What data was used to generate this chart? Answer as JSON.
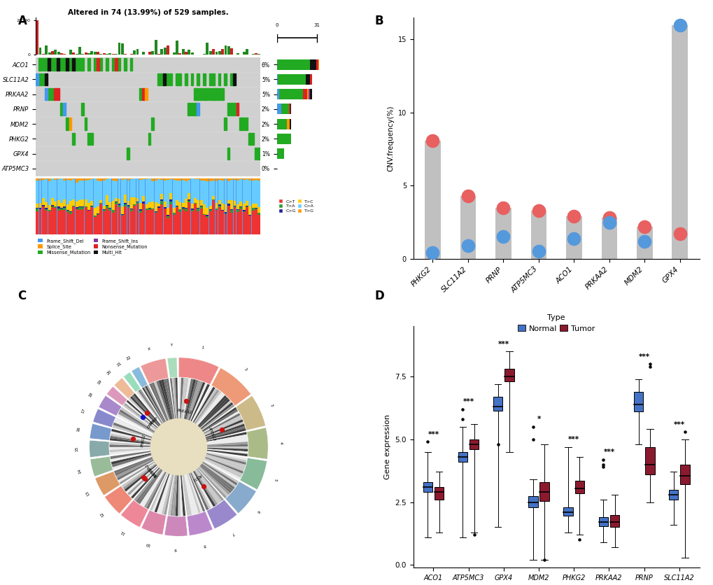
{
  "title_A": "Altered in 74 (13.99%) of 529 samples.",
  "genes": [
    "ACO1",
    "SLC11A2",
    "PRKAA2",
    "PRNP",
    "MDM2",
    "PHKG2",
    "GPX4",
    "ATP5MC3"
  ],
  "freq_labels": [
    "6%",
    "5%",
    "5%",
    "2%",
    "2%",
    "2%",
    "1%",
    "0%"
  ],
  "freq_values": [
    6,
    5,
    5,
    2,
    2,
    2,
    1,
    0
  ],
  "mutation_colors": {
    "Frame_Shift_Del": "#4499EE",
    "Missense_Mutation": "#22AA22",
    "Nonsense_Mutation": "#DD2222",
    "Splice_Site": "#FF9900",
    "Frame_Shift_Ins": "#883399",
    "Multi_Hit": "#111111"
  },
  "snv_colors": {
    "C>T": "#EE3333",
    "T>A": "#339933",
    "C>G": "#222299",
    "T>C": "#FFCC00",
    "C>A": "#66CCFF",
    "T>G": "#FF9900"
  },
  "right_bars": {
    "ACO1": [
      [
        "Missense_Mutation",
        0.78
      ],
      [
        "Multi_Hit",
        0.15
      ],
      [
        "Nonsense_Mutation",
        0.05
      ],
      [
        "Splice_Site",
        0.02
      ]
    ],
    "SLC11A2": [
      [
        "Frame_Shift_Del",
        0.03
      ],
      [
        "Missense_Mutation",
        0.8
      ],
      [
        "Multi_Hit",
        0.12
      ],
      [
        "Nonsense_Mutation",
        0.05
      ]
    ],
    "PRKAA2": [
      [
        "Frame_Shift_Del",
        0.06
      ],
      [
        "Missense_Mutation",
        0.68
      ],
      [
        "Nonsense_Mutation",
        0.12
      ],
      [
        "Splice_Site",
        0.04
      ],
      [
        "Frame_Shift_Ins",
        0.05
      ],
      [
        "Multi_Hit",
        0.05
      ]
    ],
    "PRNP": [
      [
        "Frame_Shift_Del",
        0.3
      ],
      [
        "Missense_Mutation",
        0.55
      ],
      [
        "Nonsense_Mutation",
        0.1
      ],
      [
        "Multi_Hit",
        0.05
      ]
    ],
    "MDM2": [
      [
        "Missense_Mutation",
        0.72
      ],
      [
        "Splice_Site",
        0.18
      ],
      [
        "Multi_Hit",
        0.1
      ]
    ],
    "PHKG2": [
      [
        "Missense_Mutation",
        1.0
      ]
    ],
    "GPX4": [
      [
        "Missense_Mutation",
        1.0
      ]
    ],
    "ATP5MC3": []
  },
  "cnv_genes": [
    "PHKG2",
    "SLC11A2",
    "PRNP",
    "ATP5MC3",
    "ACO1",
    "PRKAA2",
    "MDM2",
    "GPX4"
  ],
  "cnv_gain": [
    8.1,
    4.3,
    3.5,
    3.3,
    2.9,
    2.8,
    2.2,
    1.7
  ],
  "cnv_loss": [
    0.4,
    0.9,
    1.5,
    0.5,
    1.4,
    2.5,
    1.2,
    16.0
  ],
  "cnv_bar_h": [
    8.1,
    4.3,
    3.5,
    3.3,
    2.9,
    2.8,
    2.2,
    16.0
  ],
  "boxplot_genes": [
    "ACO1",
    "ATP5MC3",
    "GPX4",
    "MDM2",
    "PHKG2",
    "PRKAA2",
    "PRNP",
    "SLC11A2"
  ],
  "boxplot_sig": [
    "***",
    "***",
    "***",
    "*",
    "***",
    "***",
    "***",
    "***"
  ],
  "n_med": [
    3.1,
    4.3,
    6.3,
    2.5,
    2.1,
    1.7,
    6.4,
    2.8
  ],
  "n_q1": [
    2.9,
    4.1,
    6.15,
    2.3,
    1.95,
    1.55,
    6.1,
    2.6
  ],
  "n_q3": [
    3.3,
    4.5,
    6.7,
    2.75,
    2.3,
    1.9,
    6.9,
    3.0
  ],
  "n_wlo": [
    1.1,
    1.1,
    1.5,
    0.2,
    1.3,
    0.9,
    4.8,
    1.6
  ],
  "n_whi": [
    4.5,
    5.5,
    7.2,
    3.4,
    4.7,
    2.6,
    7.4,
    3.7
  ],
  "t_med": [
    2.9,
    4.8,
    7.5,
    2.9,
    3.05,
    1.7,
    4.0,
    3.55
  ],
  "t_q1": [
    2.6,
    4.6,
    7.3,
    2.55,
    2.85,
    1.5,
    3.6,
    3.2
  ],
  "t_q3": [
    3.1,
    5.0,
    7.8,
    3.3,
    3.35,
    2.0,
    4.7,
    4.0
  ],
  "t_wlo": [
    1.3,
    1.3,
    4.5,
    0.2,
    1.2,
    0.7,
    2.5,
    0.3
  ],
  "t_whi": [
    3.7,
    5.6,
    8.5,
    4.8,
    4.3,
    2.8,
    5.4,
    5.0
  ],
  "n_outliers": [
    [
      4.9
    ],
    [
      5.8,
      6.2
    ],
    [
      4.8
    ],
    [
      5.5,
      5.0
    ],
    [],
    [
      3.9,
      4.0,
      4.2
    ],
    [],
    []
  ],
  "t_outliers": [
    [],
    [
      1.2
    ],
    [],
    [
      0.2
    ],
    [
      1.0
    ],
    [],
    [
      8.0,
      7.9
    ],
    [
      5.3
    ]
  ],
  "normal_color": "#4472C4",
  "tumor_color": "#8B1A2F",
  "bg_color": "#D3D3D3"
}
